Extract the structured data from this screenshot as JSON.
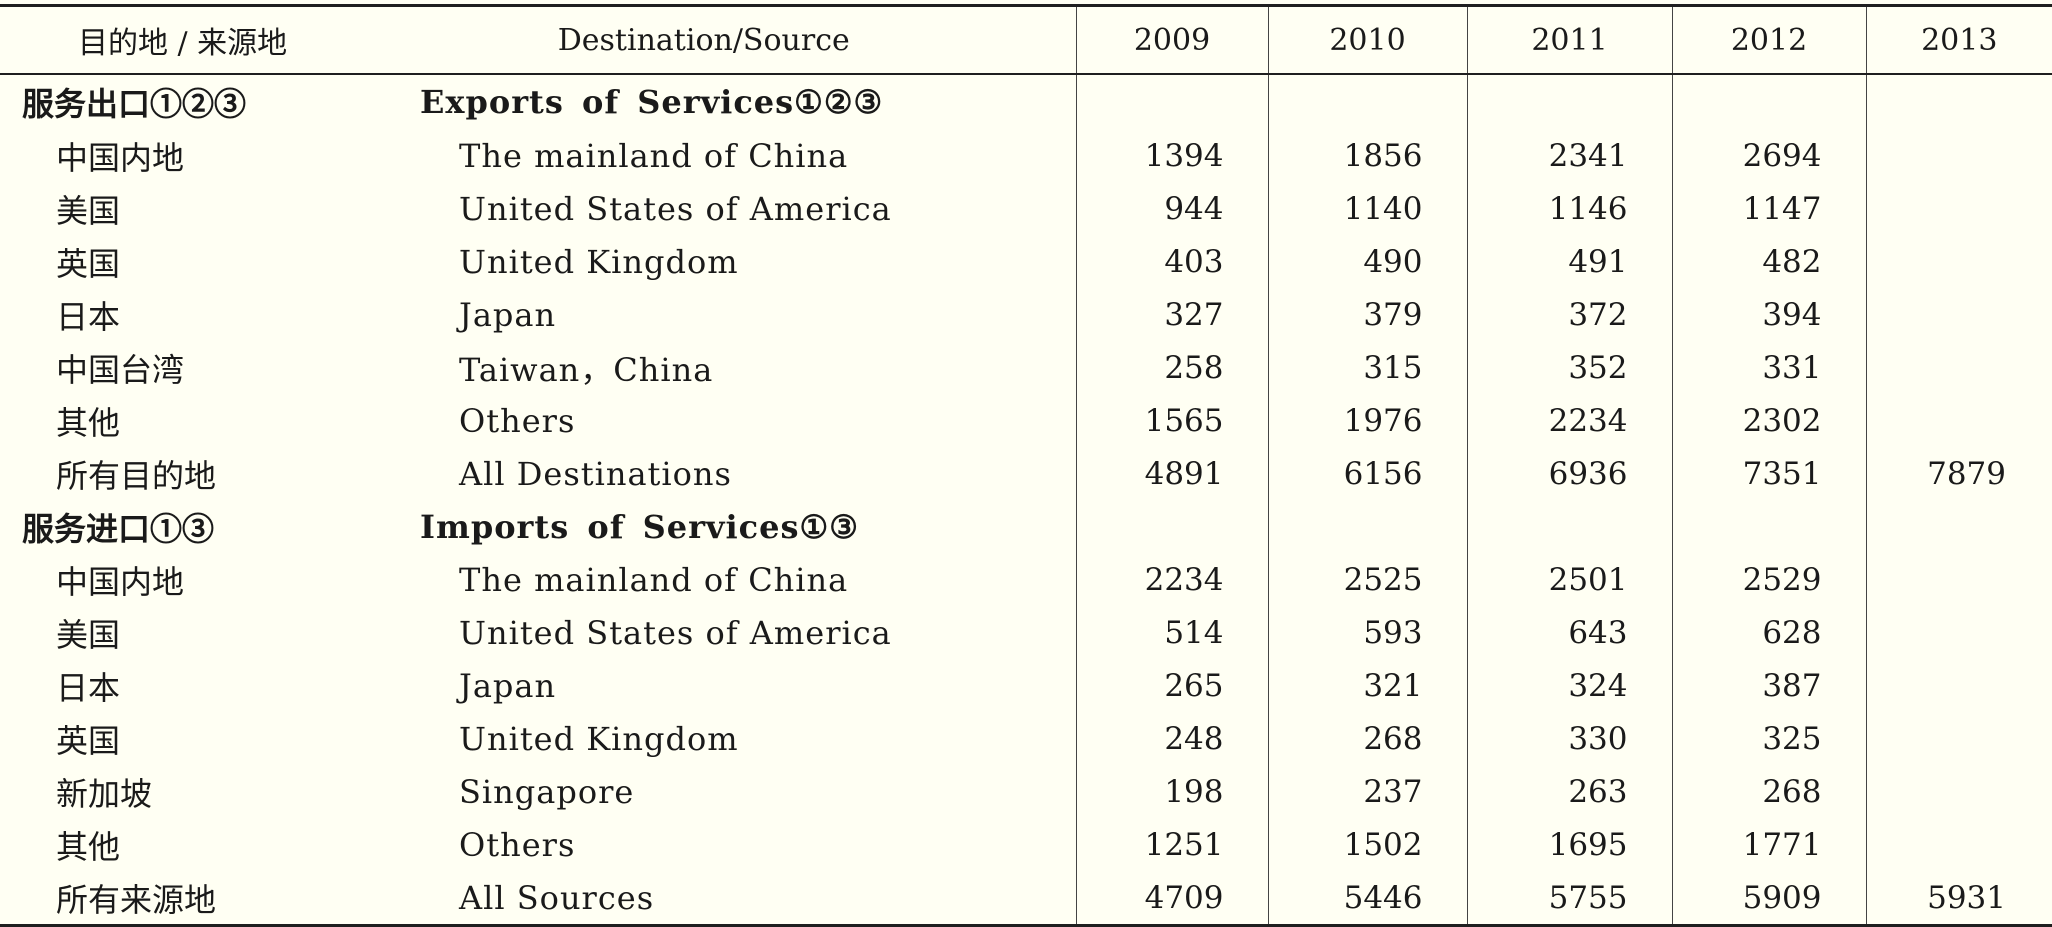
{
  "header": {
    "destination_zh": "目的地 / 来源地",
    "destination_en": "Destination/Source",
    "years": [
      "2009",
      "2010",
      "2011",
      "2012",
      "2013"
    ]
  },
  "exports": {
    "label_zh": "服务出口①②③",
    "label_en": "Exports of Services①②③",
    "rows": [
      {
        "zh": "中国内地",
        "en": "The mainland of China",
        "values": [
          "1394",
          "1856",
          "2341",
          "2694",
          ""
        ]
      },
      {
        "zh": "美国",
        "en": "United States of America",
        "values": [
          "944",
          "1140",
          "1146",
          "1147",
          ""
        ]
      },
      {
        "zh": "英国",
        "en": "United Kingdom",
        "values": [
          "403",
          "490",
          "491",
          "482",
          ""
        ]
      },
      {
        "zh": "日本",
        "en": "Japan",
        "values": [
          "327",
          "379",
          "372",
          "394",
          ""
        ]
      },
      {
        "zh": "中国台湾",
        "en": "Taiwan，China",
        "values": [
          "258",
          "315",
          "352",
          "331",
          ""
        ]
      },
      {
        "zh": "其他",
        "en": "Others",
        "values": [
          "1565",
          "1976",
          "2234",
          "2302",
          ""
        ]
      },
      {
        "zh": "所有目的地",
        "en": "All Destinations",
        "values": [
          "4891",
          "6156",
          "6936",
          "7351",
          "7879"
        ]
      }
    ]
  },
  "imports": {
    "label_zh": "服务进口①③",
    "label_en": "Imports of Services①③",
    "rows": [
      {
        "zh": "中国内地",
        "en": "The mainland of China",
        "values": [
          "2234",
          "2525",
          "2501",
          "2529",
          ""
        ]
      },
      {
        "zh": "美国",
        "en": "United States of America",
        "values": [
          "514",
          "593",
          "643",
          "628",
          ""
        ]
      },
      {
        "zh": "日本",
        "en": "Japan",
        "values": [
          "265",
          "321",
          "324",
          "387",
          ""
        ]
      },
      {
        "zh": "英国",
        "en": "United Kingdom",
        "values": [
          "248",
          "268",
          "330",
          "325",
          ""
        ]
      },
      {
        "zh": "新加坡",
        "en": "Singapore",
        "values": [
          "198",
          "237",
          "263",
          "268",
          ""
        ]
      },
      {
        "zh": "其他",
        "en": "Others",
        "values": [
          "1251",
          "1502",
          "1695",
          "1771",
          ""
        ]
      },
      {
        "zh": "所有来源地",
        "en": "All Sources",
        "values": [
          "4709",
          "5446",
          "5755",
          "5909",
          "5931"
        ]
      }
    ]
  }
}
